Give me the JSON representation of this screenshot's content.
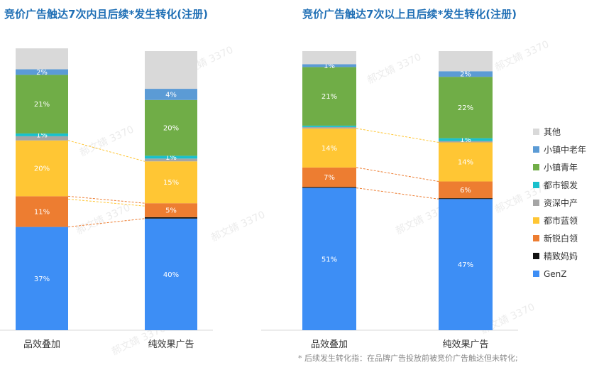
{
  "watermark": "郝文婧 3370",
  "footnote": "* 后续发生转化指：在品牌广告投放前被竞价广告触达但未转化;",
  "colors": {
    "GenZ": "#3d8ef5",
    "精致妈妈": "#111111",
    "新锐白领": "#ed7d31",
    "都市蓝领": "#ffc634",
    "资深中产": "#a5a5a5",
    "都市银发": "#19c0cc",
    "小镇青年": "#70ad47",
    "小镇中老年": "#5b9bd5",
    "其他": "#d9d9d9"
  },
  "legend": [
    "其他",
    "小镇中老年",
    "小镇青年",
    "都市银发",
    "资深中产",
    "都市蓝领",
    "新锐白领",
    "精致妈妈",
    "GenZ"
  ],
  "chart_data": [
    {
      "type": "bar",
      "stacked": true,
      "title": "竞价广告触达7次内且后续*发生转化(注册)",
      "categories": [
        "品效叠加",
        "纯效果广告"
      ],
      "ylim": [
        0,
        100
      ],
      "series": [
        {
          "name": "GenZ",
          "values": [
            37,
            40
          ],
          "labels": [
            "37%",
            "40%"
          ]
        },
        {
          "name": "精致妈妈",
          "values": [
            0,
            0.5
          ],
          "labels": [
            "",
            ""
          ]
        },
        {
          "name": "新锐白领",
          "values": [
            11,
            5
          ],
          "labels": [
            "11%",
            "5%"
          ]
        },
        {
          "name": "都市蓝领",
          "values": [
            20,
            15
          ],
          "labels": [
            "20%",
            "15%"
          ]
        },
        {
          "name": "资深中产",
          "values": [
            1.5,
            1
          ],
          "labels": [
            "",
            ""
          ]
        },
        {
          "name": "都市银发",
          "values": [
            1,
            1
          ],
          "labels": [
            "1%",
            "1%"
          ]
        },
        {
          "name": "小镇青年",
          "values": [
            21,
            20
          ],
          "labels": [
            "21%",
            "20%"
          ]
        },
        {
          "name": "小镇中老年",
          "values": [
            2,
            4
          ],
          "labels": [
            "2%",
            "4%"
          ]
        },
        {
          "name": "其他",
          "values": [
            7.5,
            13.5
          ],
          "labels": [
            "",
            ""
          ]
        }
      ]
    },
    {
      "type": "bar",
      "stacked": true,
      "title": "竞价广告触达7次以上且后续*发生转化(注册)",
      "categories": [
        "品效叠加",
        "纯效果广告"
      ],
      "ylim": [
        0,
        100
      ],
      "series": [
        {
          "name": "GenZ",
          "values": [
            51,
            47
          ],
          "labels": [
            "51%",
            "47%"
          ]
        },
        {
          "name": "精致妈妈",
          "values": [
            0.3,
            0.3
          ],
          "labels": [
            "",
            ""
          ]
        },
        {
          "name": "新锐白领",
          "values": [
            7,
            6
          ],
          "labels": [
            "7%",
            "6%"
          ]
        },
        {
          "name": "都市蓝领",
          "values": [
            14,
            14
          ],
          "labels": [
            "14%",
            "14%"
          ]
        },
        {
          "name": "资深中产",
          "values": [
            0.5,
            0.5
          ],
          "labels": [
            "",
            ""
          ]
        },
        {
          "name": "都市银发",
          "values": [
            0.5,
            1
          ],
          "labels": [
            "",
            "1%"
          ]
        },
        {
          "name": "小镇青年",
          "values": [
            21,
            22
          ],
          "labels": [
            "21%",
            "22%"
          ]
        },
        {
          "name": "小镇中老年",
          "values": [
            1,
            2
          ],
          "labels": [
            "1%",
            "2%"
          ]
        },
        {
          "name": "其他",
          "values": [
            4.7,
            7.2
          ],
          "labels": [
            "",
            ""
          ]
        }
      ]
    }
  ]
}
